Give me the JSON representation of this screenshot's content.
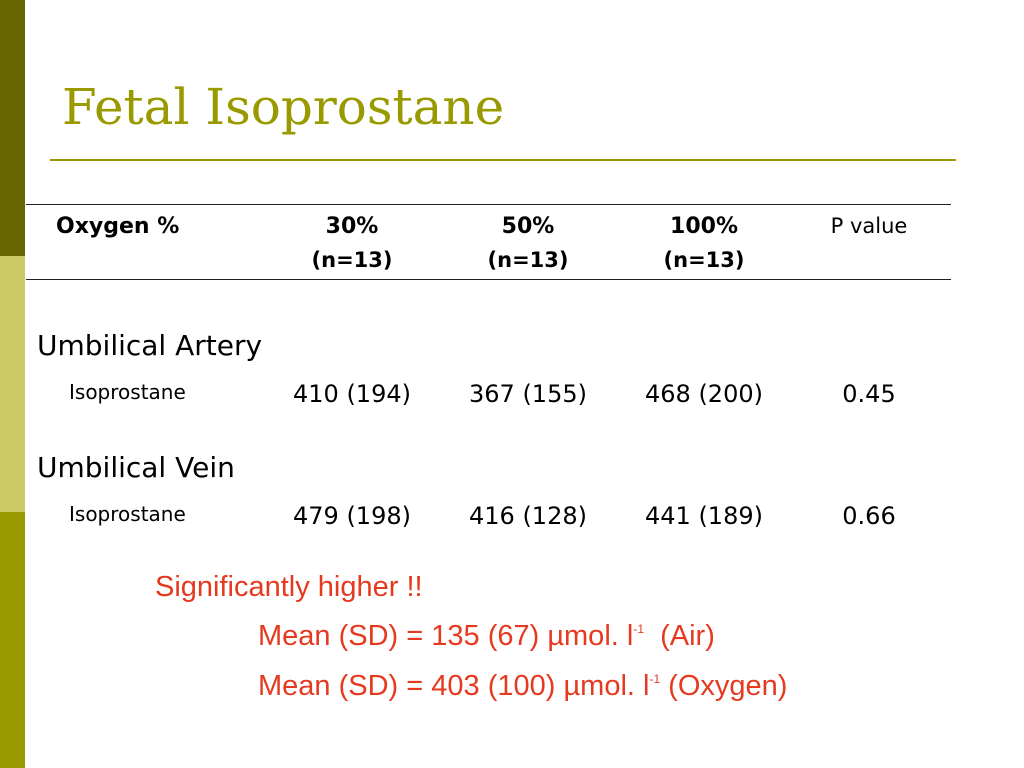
{
  "title": "Fetal Isoprostane",
  "table": {
    "headers": {
      "oxygen": "Oxygen %",
      "col1": "30%",
      "col1_n": "(n=13)",
      "col2": "50%",
      "col2_n": "(n=13)",
      "col3": "100%",
      "col3_n": "(n=13)",
      "pvalue": "P value"
    },
    "sections": [
      {
        "label": "Umbilical Artery",
        "row_label": "Isoprostane",
        "values": [
          "410 (194)",
          "367 (155)",
          "468 (200)"
        ],
        "p": "0.45"
      },
      {
        "label": "Umbilical Vein",
        "row_label": "Isoprostane",
        "values": [
          "479 (198)",
          "416 (128)",
          "441 (189)"
        ],
        "p": "0.66"
      }
    ]
  },
  "note": {
    "heading": "Significantly higher !!",
    "line1_main": "Mean (SD) = 135 (67) µmol. l",
    "line1_sup": "-1",
    "line1_tail": "  (Air)",
    "line2_main": "Mean (SD) = 403 (100) µmol. l",
    "line2_sup": "-1",
    "line2_tail": " (Oxygen)"
  },
  "colors": {
    "accent": "#999900",
    "note": "#e53a1f"
  }
}
